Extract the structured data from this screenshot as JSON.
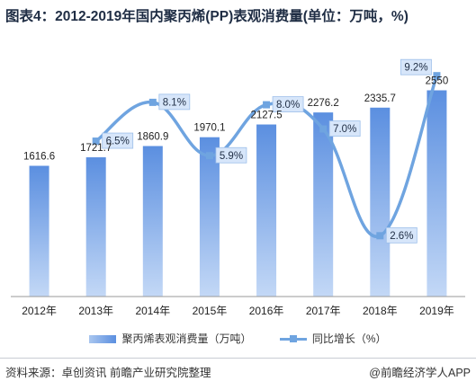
{
  "title": "图表4：2012-2019年国内聚丙烯(PP)表观消费量(单位：万吨，%)",
  "source": "资料来源：卓创资讯 前瞻产业研究院整理",
  "brand": "@前瞻经济学人APP",
  "legend": {
    "bar_label": "聚丙烯表观消费量（万吨）",
    "line_label": "同比增长（%）"
  },
  "colors": {
    "bar_light": "#b9d1f4",
    "bar_dark": "#5b8fe0",
    "line": "#6fa4e0",
    "label_box": "#d7e6fa"
  },
  "chart_data": {
    "type": "bar",
    "categories": [
      "2012年",
      "2013年",
      "2014年",
      "2015年",
      "2016年",
      "2017年",
      "2018年",
      "2019年"
    ],
    "series": [
      {
        "name": "聚丙烯表观消费量（万吨）",
        "type": "bar",
        "values": [
          1616.6,
          1721.7,
          1860.9,
          1970.1,
          2127.5,
          2276.2,
          2335.7,
          2550
        ],
        "labels": [
          "1616.6",
          "1721.7",
          "1860.9",
          "1970.1",
          "2127.5",
          "2276.2",
          "2335.7",
          "2550"
        ],
        "ylim": [
          0,
          3000
        ]
      },
      {
        "name": "同比增长（%）",
        "type": "line",
        "x": [
          "2013年",
          "2014年",
          "2015年",
          "2016年",
          "2017年",
          "2018年",
          "2019年"
        ],
        "values": [
          6.5,
          8.1,
          5.9,
          8.0,
          7.0,
          2.6,
          9.2
        ],
        "labels": [
          "6.5%",
          "8.1%",
          "5.9%",
          "8.0%",
          "7.0%",
          "2.6%",
          "9.2%"
        ],
        "ylim": [
          0,
          10
        ]
      }
    ],
    "grid": false,
    "legend_position": "bottom"
  }
}
